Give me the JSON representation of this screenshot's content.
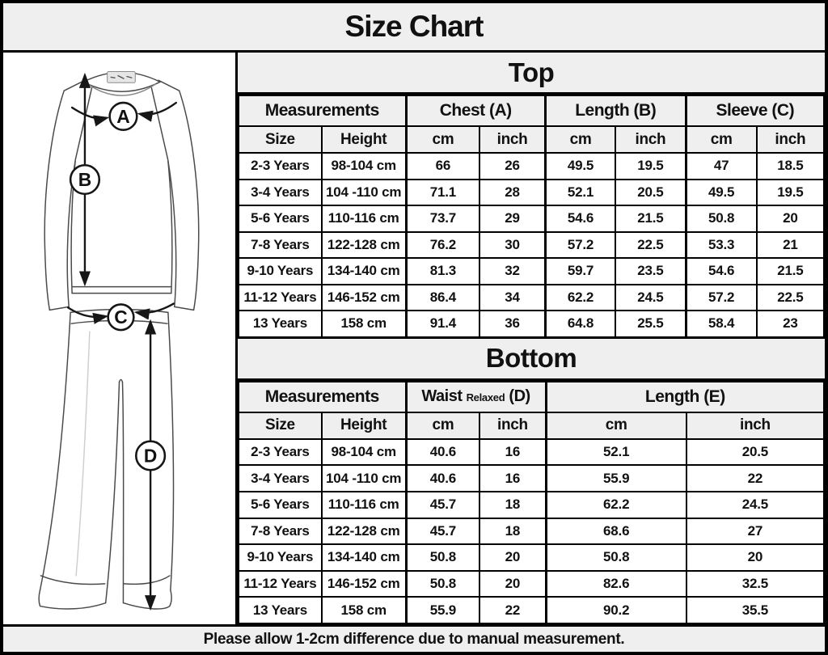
{
  "title": "Size Chart",
  "footer_note": "Please allow 1-2cm difference due to manual measurement.",
  "colors": {
    "header_bg": "#efefef",
    "cell_bg": "#ffffff",
    "border": "#000000",
    "text": "#111111"
  },
  "diagram": {
    "labels": [
      "A",
      "B",
      "C",
      "D"
    ],
    "meaning": {
      "A": "chest width",
      "B": "top length",
      "C": "waist width",
      "D": "bottom length"
    }
  },
  "sections": {
    "top": {
      "title": "Top",
      "groups": [
        "Measurements",
        "Chest (A)",
        "Length (B)",
        "Sleeve (C)"
      ],
      "sub_headers": [
        "Size",
        "Height",
        "cm",
        "inch",
        "cm",
        "inch",
        "cm",
        "inch"
      ]
    },
    "bottom": {
      "title": "Bottom",
      "group_measurements": "Measurements",
      "waist_label": "Waist",
      "waist_small": "Relaxed",
      "waist_letter": "(D)",
      "group_length": "Length (E)",
      "sub_headers": [
        "Size",
        "Height",
        "cm",
        "inch",
        "cm",
        "inch"
      ]
    }
  },
  "chart_data": [
    {
      "type": "table",
      "title": "Top",
      "columns": [
        "Size",
        "Height",
        "Chest (A) cm",
        "Chest (A) inch",
        "Length (B) cm",
        "Length (B) inch",
        "Sleeve (C) cm",
        "Sleeve (C) inch"
      ],
      "rows": [
        [
          "2-3 Years",
          "98-104 cm",
          "66",
          "26",
          "49.5",
          "19.5",
          "47",
          "18.5"
        ],
        [
          "3-4 Years",
          "104 -110 cm",
          "71.1",
          "28",
          "52.1",
          "20.5",
          "49.5",
          "19.5"
        ],
        [
          "5-6 Years",
          "110-116 cm",
          "73.7",
          "29",
          "54.6",
          "21.5",
          "50.8",
          "20"
        ],
        [
          "7-8 Years",
          "122-128 cm",
          "76.2",
          "30",
          "57.2",
          "22.5",
          "53.3",
          "21"
        ],
        [
          "9-10 Years",
          "134-140 cm",
          "81.3",
          "32",
          "59.7",
          "23.5",
          "54.6",
          "21.5"
        ],
        [
          "11-12 Years",
          "146-152 cm",
          "86.4",
          "34",
          "62.2",
          "24.5",
          "57.2",
          "22.5"
        ],
        [
          "13 Years",
          "158 cm",
          "91.4",
          "36",
          "64.8",
          "25.5",
          "58.4",
          "23"
        ]
      ]
    },
    {
      "type": "table",
      "title": "Bottom",
      "columns": [
        "Size",
        "Height",
        "Waist Relaxed (D) cm",
        "Waist Relaxed (D) inch",
        "Length (E) cm",
        "Length (E) inch"
      ],
      "rows": [
        [
          "2-3 Years",
          "98-104 cm",
          "40.6",
          "16",
          "52.1",
          "20.5"
        ],
        [
          "3-4 Years",
          "104 -110 cm",
          "40.6",
          "16",
          "55.9",
          "22"
        ],
        [
          "5-6 Years",
          "110-116 cm",
          "45.7",
          "18",
          "62.2",
          "24.5"
        ],
        [
          "7-8 Years",
          "122-128 cm",
          "45.7",
          "18",
          "68.6",
          "27"
        ],
        [
          "9-10 Years",
          "134-140 cm",
          "50.8",
          "20",
          "50.8",
          "20"
        ],
        [
          "11-12 Years",
          "146-152 cm",
          "50.8",
          "20",
          "82.6",
          "32.5"
        ],
        [
          "13 Years",
          "158 cm",
          "55.9",
          "22",
          "90.2",
          "35.5"
        ]
      ]
    }
  ]
}
